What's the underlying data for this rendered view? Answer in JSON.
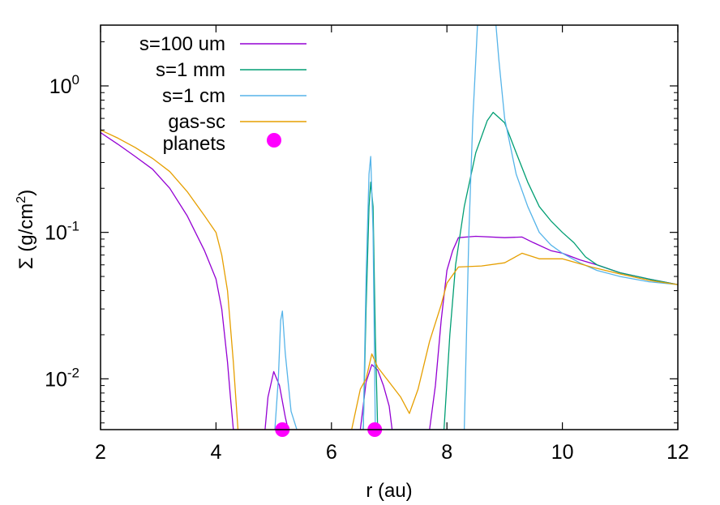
{
  "chart_data": {
    "type": "line",
    "xlabel": "r (au)",
    "ylabel": "Σ (g/cm²)",
    "ylabel_parts": {
      "prefix": "Σ (g/cm",
      "superscript": "2",
      "suffix": ")"
    },
    "xlim": [
      2,
      12
    ],
    "ylim": [
      0.0045,
      2.6
    ],
    "yscale": "log",
    "grid": false,
    "legend_position": "top-left",
    "x_ticks": [
      {
        "value": 2,
        "label": "2"
      },
      {
        "value": 4,
        "label": "4"
      },
      {
        "value": 6,
        "label": "6"
      },
      {
        "value": 8,
        "label": "8"
      },
      {
        "value": 10,
        "label": "10"
      },
      {
        "value": 12,
        "label": "12"
      }
    ],
    "y_ticks": [
      {
        "value": 0.01,
        "base": "10",
        "exponent": "-2"
      },
      {
        "value": 0.1,
        "base": "10",
        "exponent": "-1"
      },
      {
        "value": 1,
        "base": "10",
        "exponent": "0"
      }
    ],
    "series": [
      {
        "name": "s=100 um",
        "color": "#9400d3",
        "points": [
          [
            2.0,
            0.48
          ],
          [
            2.3,
            0.4
          ],
          [
            2.6,
            0.33
          ],
          [
            2.9,
            0.27
          ],
          [
            3.2,
            0.2
          ],
          [
            3.5,
            0.13
          ],
          [
            3.8,
            0.075
          ],
          [
            4.0,
            0.048
          ],
          [
            4.1,
            0.03
          ],
          [
            4.2,
            0.013
          ],
          [
            4.25,
            0.0075
          ],
          [
            4.3,
            0.0045
          ],
          [
            4.85,
            0.0045
          ],
          [
            4.9,
            0.0075
          ],
          [
            5.0,
            0.0112
          ],
          [
            5.1,
            0.009
          ],
          [
            5.2,
            0.0055
          ],
          [
            5.25,
            0.0045
          ],
          [
            6.5,
            0.0045
          ],
          [
            6.6,
            0.0095
          ],
          [
            6.7,
            0.0125
          ],
          [
            6.8,
            0.0115
          ],
          [
            6.9,
            0.009
          ],
          [
            7.0,
            0.0065
          ],
          [
            7.05,
            0.0045
          ],
          [
            7.7,
            0.0045
          ],
          [
            7.8,
            0.009
          ],
          [
            7.9,
            0.025
          ],
          [
            8.0,
            0.055
          ],
          [
            8.1,
            0.075
          ],
          [
            8.2,
            0.092
          ],
          [
            8.5,
            0.094
          ],
          [
            9.0,
            0.092
          ],
          [
            9.3,
            0.093
          ],
          [
            9.5,
            0.085
          ],
          [
            9.8,
            0.075
          ],
          [
            10.0,
            0.072
          ],
          [
            10.3,
            0.065
          ],
          [
            10.6,
            0.06
          ],
          [
            11.0,
            0.053
          ],
          [
            11.5,
            0.048
          ],
          [
            12.0,
            0.044
          ]
        ]
      },
      {
        "name": "s=1 mm",
        "color": "#009e73",
        "points": [
          [
            6.55,
            0.0045
          ],
          [
            6.6,
            0.03
          ],
          [
            6.65,
            0.15
          ],
          [
            6.68,
            0.22
          ],
          [
            6.72,
            0.15
          ],
          [
            6.76,
            0.02
          ],
          [
            6.8,
            0.0045
          ],
          [
            7.95,
            0.0045
          ],
          [
            8.05,
            0.02
          ],
          [
            8.15,
            0.06
          ],
          [
            8.3,
            0.15
          ],
          [
            8.5,
            0.35
          ],
          [
            8.7,
            0.58
          ],
          [
            8.8,
            0.66
          ],
          [
            9.0,
            0.56
          ],
          [
            9.2,
            0.35
          ],
          [
            9.4,
            0.22
          ],
          [
            9.6,
            0.15
          ],
          [
            9.8,
            0.12
          ],
          [
            10.0,
            0.1
          ],
          [
            10.2,
            0.085
          ],
          [
            10.4,
            0.068
          ],
          [
            10.6,
            0.06
          ],
          [
            11.0,
            0.053
          ],
          [
            11.5,
            0.048
          ],
          [
            12.0,
            0.044
          ]
        ]
      },
      {
        "name": "s=1 cm",
        "color": "#56b4e9",
        "points": [
          [
            5.02,
            0.0045
          ],
          [
            5.08,
            0.01
          ],
          [
            5.12,
            0.025
          ],
          [
            5.15,
            0.029
          ],
          [
            5.2,
            0.015
          ],
          [
            5.3,
            0.006
          ],
          [
            5.4,
            0.0045
          ],
          [
            6.55,
            0.0045
          ],
          [
            6.6,
            0.05
          ],
          [
            6.65,
            0.25
          ],
          [
            6.68,
            0.33
          ],
          [
            6.72,
            0.1
          ],
          [
            6.76,
            0.0045
          ],
          [
            8.3,
            0.0045
          ],
          [
            8.38,
            0.1
          ],
          [
            8.45,
            0.6
          ],
          [
            8.5,
            1.5
          ],
          [
            8.53,
            2.6
          ],
          [
            8.85,
            2.6
          ],
          [
            8.9,
            1.5
          ],
          [
            9.0,
            0.6
          ],
          [
            9.2,
            0.25
          ],
          [
            9.4,
            0.15
          ],
          [
            9.6,
            0.1
          ],
          [
            9.8,
            0.082
          ],
          [
            10.0,
            0.072
          ],
          [
            10.3,
            0.062
          ],
          [
            10.6,
            0.055
          ],
          [
            11.0,
            0.05
          ],
          [
            11.5,
            0.046
          ],
          [
            12.0,
            0.044
          ]
        ]
      },
      {
        "name": "gas-sc",
        "color": "#e69f00",
        "points": [
          [
            2.0,
            0.5
          ],
          [
            2.3,
            0.44
          ],
          [
            2.6,
            0.38
          ],
          [
            2.9,
            0.32
          ],
          [
            3.2,
            0.26
          ],
          [
            3.5,
            0.19
          ],
          [
            3.8,
            0.13
          ],
          [
            4.0,
            0.1
          ],
          [
            4.1,
            0.07
          ],
          [
            4.2,
            0.04
          ],
          [
            4.3,
            0.013
          ],
          [
            4.38,
            0.0045
          ],
          [
            6.35,
            0.0045
          ],
          [
            6.5,
            0.0085
          ],
          [
            6.6,
            0.01
          ],
          [
            6.7,
            0.0148
          ],
          [
            6.8,
            0.012
          ],
          [
            7.0,
            0.0095
          ],
          [
            7.2,
            0.0075
          ],
          [
            7.35,
            0.0058
          ],
          [
            7.5,
            0.0085
          ],
          [
            7.7,
            0.018
          ],
          [
            7.9,
            0.032
          ],
          [
            8.0,
            0.045
          ],
          [
            8.2,
            0.058
          ],
          [
            8.6,
            0.059
          ],
          [
            9.0,
            0.062
          ],
          [
            9.3,
            0.072
          ],
          [
            9.6,
            0.066
          ],
          [
            10.0,
            0.066
          ],
          [
            10.5,
            0.058
          ],
          [
            11.0,
            0.052
          ],
          [
            11.5,
            0.047
          ],
          [
            12.0,
            0.044
          ]
        ]
      }
    ],
    "markers": {
      "name": "planets",
      "color": "#ff00ff",
      "points": [
        [
          5.15,
          0.0045
        ],
        [
          6.75,
          0.0045
        ]
      ]
    }
  }
}
